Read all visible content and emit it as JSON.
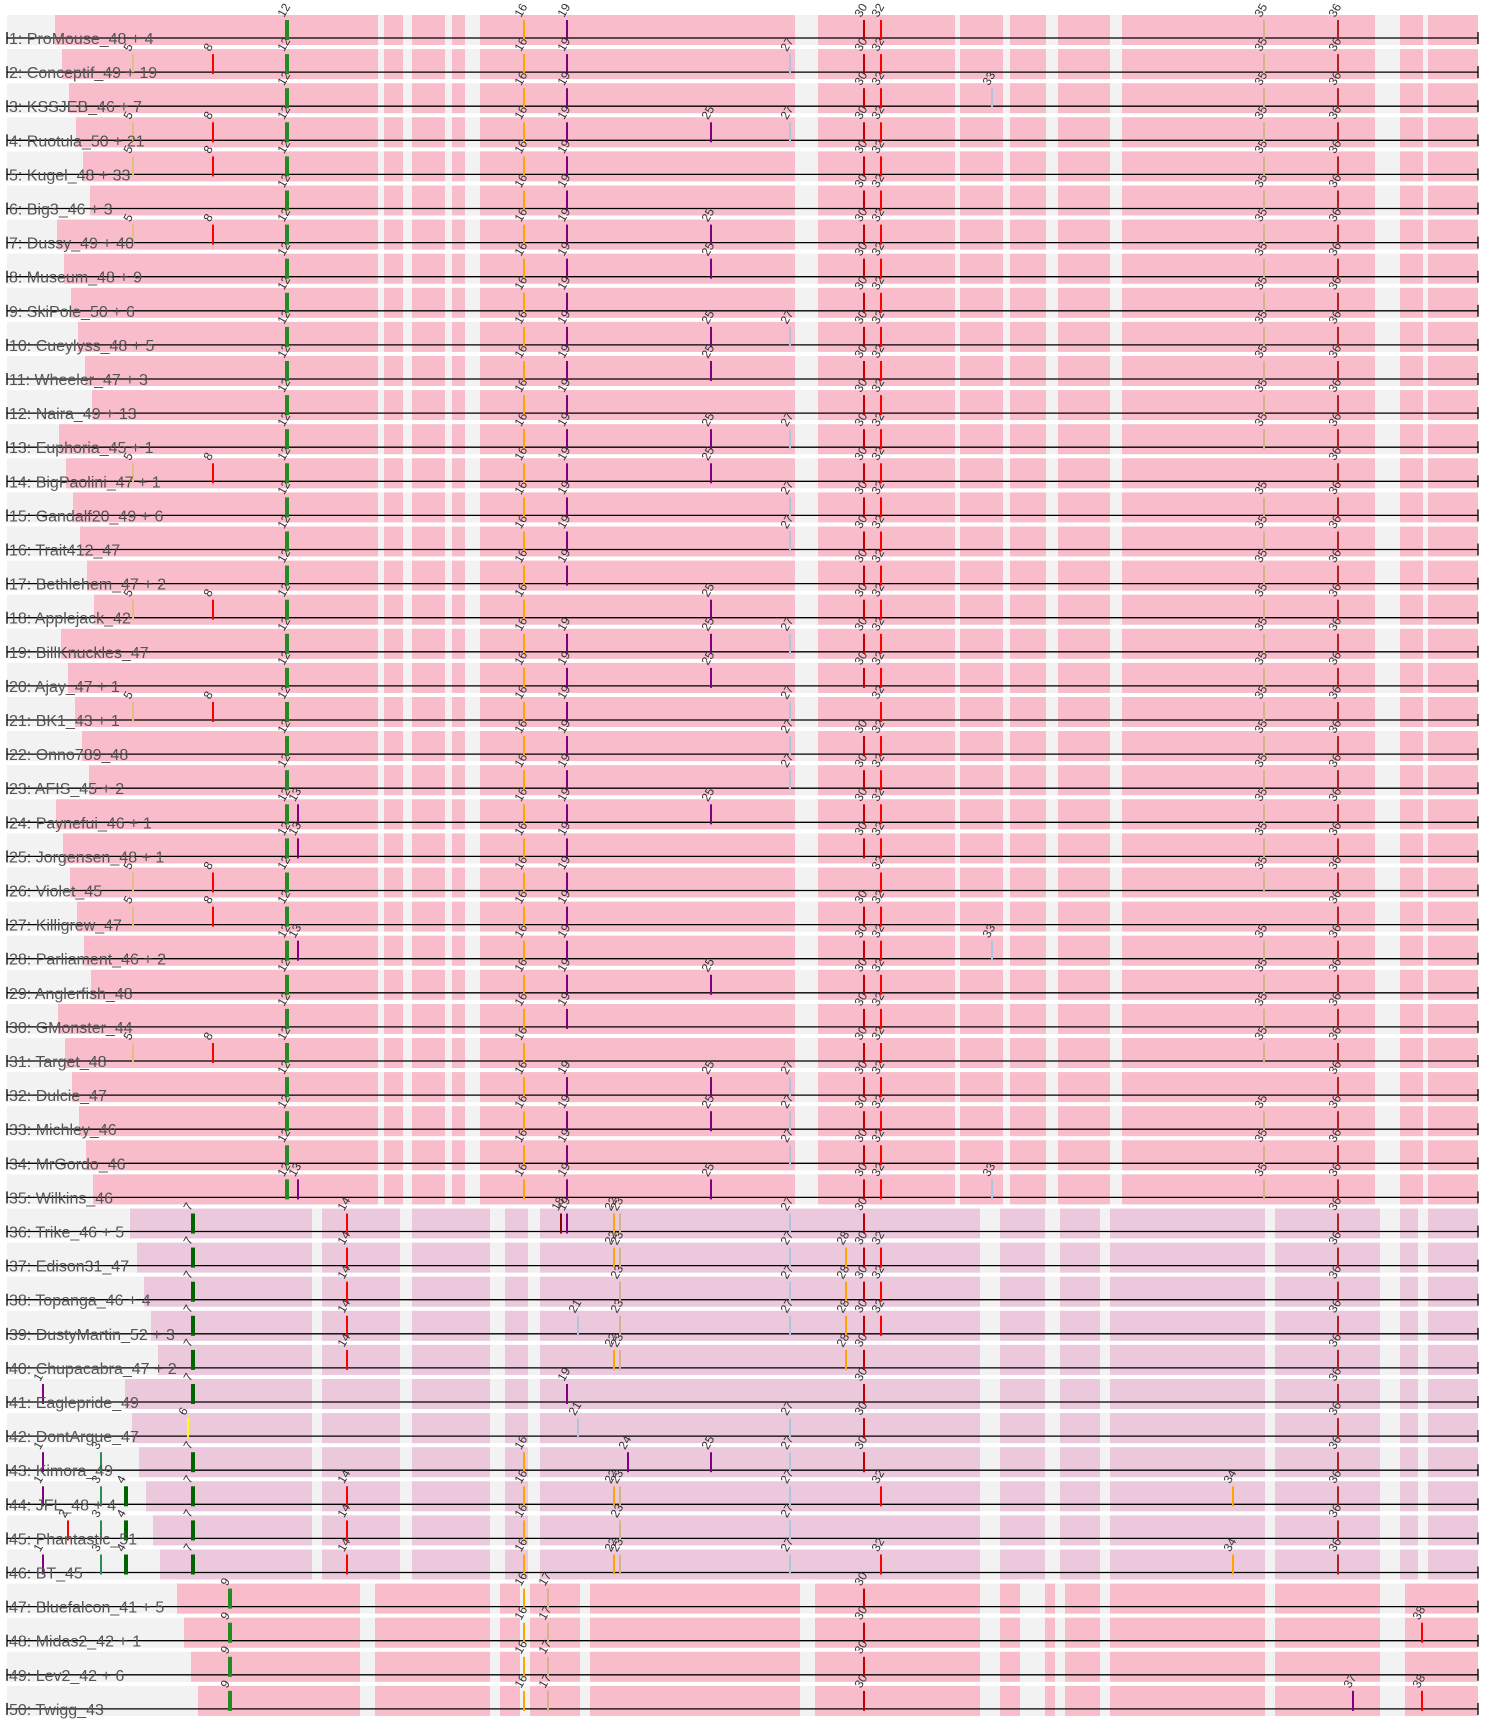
{
  "group_a": {
    "positions": [
      {
        "n": 1,
        "label": "12"
      },
      {
        "n": 2,
        "label": "16"
      },
      {
        "n": 3,
        "label": "19"
      },
      {
        "n": 4,
        "label": "30"
      },
      {
        "n": 5,
        "label": "32"
      },
      {
        "n": 6,
        "label": "35"
      },
      {
        "n": 7,
        "label": "36"
      },
      {
        "n": 8,
        "label": "5"
      },
      {
        "n": 9,
        "label": "8"
      },
      {
        "n": 10,
        "label": "27"
      },
      {
        "n": 11,
        "label": "33"
      },
      {
        "n": 12,
        "label": "25"
      },
      {
        "n": 13,
        "label": "13"
      }
    ],
    "rows": [
      {
        "label": "1: ProMouse_48 + 4",
        "marks": [
          12,
          16,
          19,
          30,
          32,
          35,
          36
        ]
      },
      {
        "label": "2: Conceptif_49 + 19",
        "marks": [
          5,
          8,
          12,
          16,
          19,
          27,
          30,
          32,
          35,
          36
        ]
      },
      {
        "label": "3: KSSJEB_46 + 7",
        "marks": [
          12,
          16,
          19,
          30,
          32,
          33,
          35,
          36
        ]
      },
      {
        "label": "4: Ruotula_50 + 21",
        "marks": [
          5,
          8,
          12,
          16,
          19,
          25,
          27,
          30,
          32,
          35,
          36
        ]
      },
      {
        "label": "5: Kugel_48 + 33",
        "marks": [
          5,
          8,
          12,
          16,
          19,
          30,
          32,
          35,
          36
        ]
      },
      {
        "label": "6: Big3_46 + 3",
        "marks": [
          12,
          16,
          19,
          30,
          32,
          35,
          36
        ]
      },
      {
        "label": "7: Dussy_49 + 40",
        "marks": [
          5,
          8,
          12,
          16,
          19,
          25,
          30,
          32,
          35,
          36
        ]
      },
      {
        "label": "8: Museum_48 + 9",
        "marks": [
          12,
          16,
          19,
          25,
          30,
          32,
          35,
          36
        ]
      },
      {
        "label": "9: SkiPole_50 + 6",
        "marks": [
          12,
          16,
          19,
          30,
          32,
          35,
          36
        ]
      },
      {
        "label": "10: Cueylyss_48 + 5",
        "marks": [
          12,
          16,
          19,
          25,
          27,
          30,
          32,
          35,
          36
        ]
      },
      {
        "label": "11: Wheeler_47 + 3",
        "marks": [
          12,
          16,
          19,
          25,
          30,
          32,
          35,
          36
        ]
      },
      {
        "label": "12: Naira_49 + 13",
        "marks": [
          12,
          16,
          19,
          30,
          32,
          35,
          36
        ]
      },
      {
        "label": "13: Euphoria_45 + 1",
        "marks": [
          12,
          16,
          19,
          25,
          27,
          30,
          32,
          35,
          36
        ]
      },
      {
        "label": "14: BigPaolini_47 + 1",
        "marks": [
          5,
          8,
          12,
          16,
          19,
          25,
          30,
          32,
          36
        ]
      },
      {
        "label": "15: Gandalf20_49 + 6",
        "marks": [
          12,
          16,
          19,
          27,
          30,
          32,
          35,
          36
        ]
      },
      {
        "label": "16: Trait412_47",
        "marks": [
          12,
          16,
          19,
          27,
          30,
          32,
          35,
          36
        ]
      },
      {
        "label": "17: Bethlehem_47 + 2",
        "marks": [
          12,
          16,
          19,
          30,
          32,
          35,
          36
        ]
      },
      {
        "label": "18: Applejack_42",
        "marks": [
          5,
          8,
          12,
          16,
          25,
          30,
          32,
          35,
          36
        ]
      },
      {
        "label": "19: BillKnuckles_47",
        "marks": [
          12,
          16,
          19,
          25,
          27,
          30,
          32,
          35,
          36
        ]
      },
      {
        "label": "20: Ajay_47 + 1",
        "marks": [
          12,
          16,
          19,
          25,
          30,
          32,
          35,
          36
        ]
      },
      {
        "label": "21: BK1_43 + 1",
        "marks": [
          5,
          8,
          12,
          16,
          19,
          27,
          32,
          35,
          36
        ]
      },
      {
        "label": "22: Onno789_48",
        "marks": [
          12,
          16,
          19,
          27,
          30,
          32,
          35,
          36
        ]
      },
      {
        "label": "23: AFIS_45 + 2",
        "marks": [
          12,
          16,
          19,
          27,
          30,
          32,
          35,
          36
        ]
      },
      {
        "label": "24: Paynefui_46 + 1",
        "marks": [
          12,
          13,
          16,
          19,
          25,
          30,
          32,
          35,
          36
        ]
      },
      {
        "label": "25: Jorgensen_48 + 1",
        "marks": [
          12,
          13,
          16,
          19,
          30,
          32,
          35,
          36
        ]
      },
      {
        "label": "26: Violet_45",
        "marks": [
          5,
          8,
          12,
          16,
          19,
          32,
          35,
          36
        ]
      },
      {
        "label": "27: Killigrew_47",
        "marks": [
          5,
          8,
          12,
          16,
          19,
          30,
          32,
          36
        ]
      },
      {
        "label": "28: Parliament_46 + 2",
        "marks": [
          12,
          13,
          16,
          19,
          30,
          32,
          33,
          35,
          36
        ]
      },
      {
        "label": "29: Anglerfish_48",
        "marks": [
          12,
          16,
          19,
          25,
          30,
          32,
          35,
          36
        ]
      },
      {
        "label": "30: GMonster_44",
        "marks": [
          12,
          16,
          19,
          30,
          32,
          35,
          36
        ]
      },
      {
        "label": "31: Target_48",
        "marks": [
          5,
          8,
          12,
          16,
          30,
          32,
          35,
          36
        ]
      },
      {
        "label": "32: Dulcie_47",
        "marks": [
          12,
          16,
          19,
          25,
          27,
          30,
          32,
          36
        ]
      },
      {
        "label": "33: Michley_46",
        "marks": [
          12,
          16,
          19,
          25,
          27,
          30,
          32,
          35,
          36
        ]
      },
      {
        "label": "34: MrGordo_46",
        "marks": [
          12,
          16,
          19,
          27,
          30,
          32,
          35,
          36
        ]
      },
      {
        "label": "35: Wilkins_46",
        "marks": [
          12,
          13,
          16,
          19,
          25,
          30,
          32,
          33,
          35,
          36
        ]
      }
    ]
  },
  "group_b": {
    "positions": [
      {
        "n": 1,
        "label": "7"
      },
      {
        "n": 2,
        "label": "14"
      },
      {
        "n": 3,
        "label": "18"
      },
      {
        "n": 4,
        "label": "19"
      },
      {
        "n": 5,
        "label": "22"
      },
      {
        "n": 6,
        "label": "23"
      },
      {
        "n": 7,
        "label": "27"
      },
      {
        "n": 8,
        "label": "30"
      },
      {
        "n": 9,
        "label": "36"
      },
      {
        "n": 10,
        "label": "28"
      },
      {
        "n": 11,
        "label": "32"
      },
      {
        "n": 12,
        "label": "21"
      },
      {
        "n": 13,
        "label": "1"
      },
      {
        "n": 14,
        "label": "6"
      },
      {
        "n": 15,
        "label": "3"
      },
      {
        "n": 16,
        "label": "16"
      },
      {
        "n": 17,
        "label": "24"
      },
      {
        "n": 18,
        "label": "25"
      },
      {
        "n": 19,
        "label": "2"
      },
      {
        "n": 20,
        "label": "4"
      },
      {
        "n": 21,
        "label": "34"
      }
    ],
    "rows": [
      {
        "label": "36: Trike_46 + 5",
        "marks": [
          7,
          14,
          18,
          19,
          22,
          23,
          27,
          30,
          36
        ]
      },
      {
        "label": "37: Edison31_47",
        "marks": [
          7,
          14,
          22,
          23,
          27,
          28,
          30,
          32,
          36
        ]
      },
      {
        "label": "38: Topanga_46 + 4",
        "marks": [
          7,
          14,
          23,
          27,
          28,
          30,
          32,
          36
        ]
      },
      {
        "label": "39: DustyMartin_52 + 3",
        "marks": [
          7,
          14,
          21,
          23,
          27,
          28,
          30,
          32,
          36
        ]
      },
      {
        "label": "40: Chupacabra_47 + 2",
        "marks": [
          7,
          14,
          22,
          23,
          28,
          30,
          36
        ]
      },
      {
        "label": "41: Eaglepride_49",
        "marks": [
          1,
          7,
          19,
          30,
          36
        ]
      },
      {
        "label": "42: DontArgue_47",
        "marks": [
          6,
          21,
          27,
          30,
          36
        ]
      },
      {
        "label": "43: Kimora_49",
        "marks": [
          1,
          3,
          7,
          16,
          24,
          25,
          27,
          30,
          36
        ]
      },
      {
        "label": "44: JFL_48 + 4",
        "marks": [
          1,
          3,
          4,
          7,
          14,
          16,
          22,
          23,
          27,
          32,
          34,
          36
        ]
      },
      {
        "label": "45: Phantastic_51",
        "marks": [
          2,
          3,
          4,
          7,
          14,
          16,
          23,
          27,
          36
        ]
      },
      {
        "label": "46: BT_45",
        "marks": [
          1,
          3,
          4,
          7,
          14,
          16,
          22,
          23,
          27,
          32,
          34,
          36
        ]
      }
    ]
  },
  "group_c": {
    "positions": [
      {
        "n": 1,
        "label": "9"
      },
      {
        "n": 2,
        "label": "16"
      },
      {
        "n": 3,
        "label": "17"
      },
      {
        "n": 4,
        "label": "30"
      },
      {
        "n": 5,
        "label": "38"
      },
      {
        "n": 6,
        "label": "37"
      }
    ],
    "rows": [
      {
        "label": "47: Bluefalcon_41 + 5",
        "marks": [
          9,
          16,
          17,
          30
        ]
      },
      {
        "label": "48: Midas2_42 + 1",
        "marks": [
          9,
          16,
          17,
          30,
          38
        ]
      },
      {
        "label": "49: Lev2_42 + 6",
        "marks": [
          9,
          16,
          17,
          30
        ]
      },
      {
        "label": "50: Twigg_43",
        "marks": [
          9,
          16,
          17,
          30,
          37,
          38
        ]
      }
    ]
  },
  "colors": {
    "group_a_fill": "#f9bccb",
    "group_b_fill": "#ecc8dc",
    "group_c_fill": "#f9bccb",
    "gap_fill": "#f2f2f2",
    "row_line": "#000000",
    "label_text": "#555555",
    "position_text": "#333333"
  }
}
